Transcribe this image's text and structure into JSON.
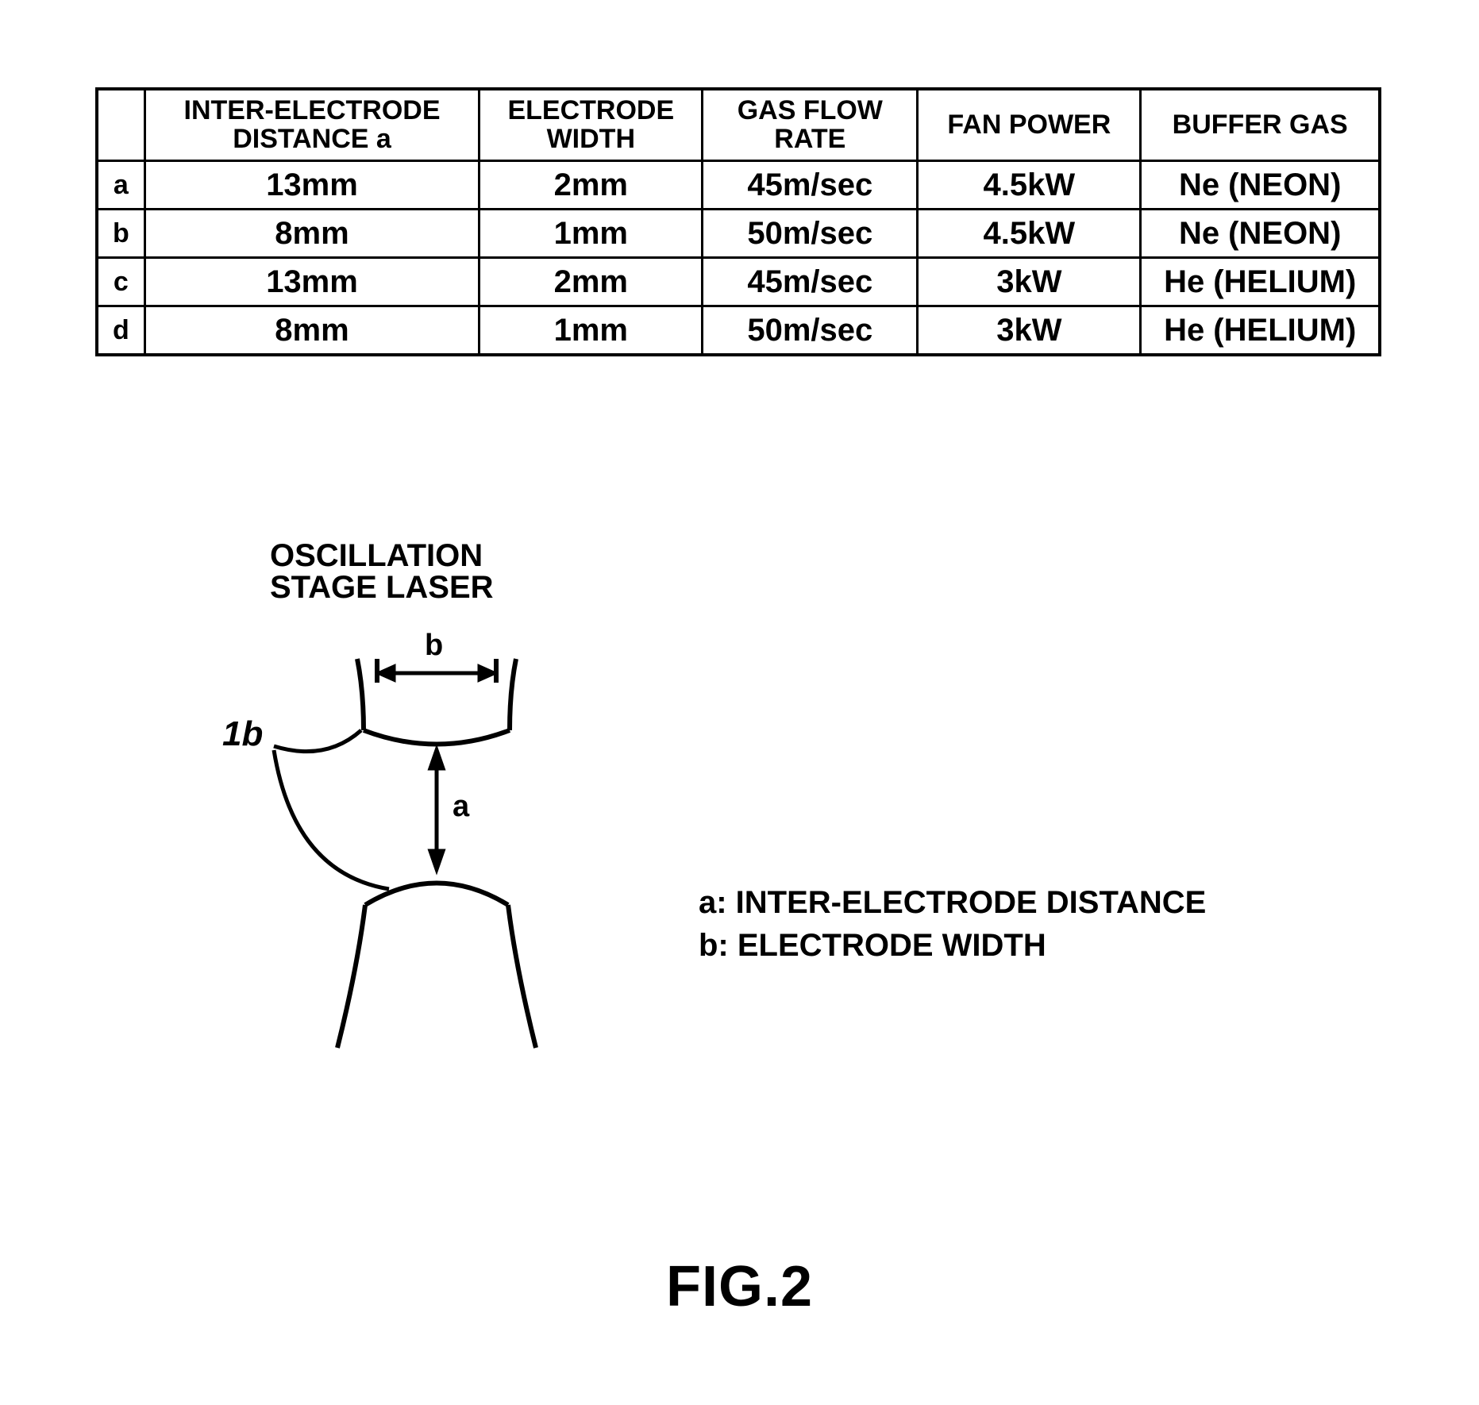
{
  "table": {
    "headers": [
      "",
      "INTER-ELECTRODE\nDISTANCE a",
      "ELECTRODE\nWIDTH",
      "GAS FLOW\nRATE",
      "FAN POWER",
      "BUFFER GAS"
    ],
    "rows": [
      {
        "label": "a",
        "cells": [
          "13mm",
          "2mm",
          "45m/sec",
          "4.5kW",
          "Ne (NEON)"
        ]
      },
      {
        "label": "b",
        "cells": [
          "8mm",
          "1mm",
          "50m/sec",
          "4.5kW",
          "Ne (NEON)"
        ]
      },
      {
        "label": "c",
        "cells": [
          "13mm",
          "2mm",
          "45m/sec",
          "3kW",
          "He (HELIUM)"
        ]
      },
      {
        "label": "d",
        "cells": [
          "8mm",
          "1mm",
          "50m/sec",
          "3kW",
          "He (HELIUM)"
        ]
      }
    ]
  },
  "diagram": {
    "title_line1": "OSCILLATION",
    "title_line2": "STAGE LASER",
    "ref_label": "1b",
    "dim_b_label": "b",
    "dim_a_label": "a",
    "stroke_color": "#000000",
    "stroke_width": 6
  },
  "legend": {
    "a": "a: INTER-ELECTRODE DISTANCE",
    "b": "b: ELECTRODE WIDTH"
  },
  "caption": "FIG.2"
}
